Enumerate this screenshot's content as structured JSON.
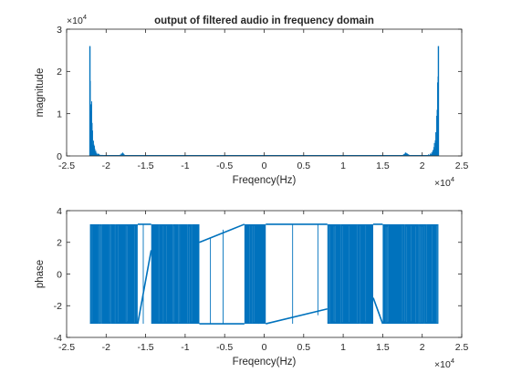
{
  "chart_data": [
    {
      "type": "line",
      "title": "output of filtered audio in frequency domain",
      "xlabel": "Freqency(Hz)",
      "ylabel": "magnitude",
      "x_exponent": {
        "base": "×10",
        "power": "4"
      },
      "y_exponent": {
        "base": "×10",
        "power": "4"
      },
      "xlim": [
        -25000,
        25000
      ],
      "ylim": [
        0,
        30000
      ],
      "x_tick_values": [
        -25000,
        -20000,
        -15000,
        -10000,
        -5000,
        0,
        5000,
        10000,
        15000,
        20000,
        25000
      ],
      "x_tick_labels": [
        "-2.5",
        "-2",
        "-1.5",
        "-1",
        "-0.5",
        "0",
        "0.5",
        "1",
        "1.5",
        "2",
        "2.5"
      ],
      "y_tick_values": [
        0,
        10000,
        20000,
        30000
      ],
      "y_tick_labels": [
        "0",
        "1",
        "2",
        "3"
      ],
      "grid": false,
      "color": "#0072BD",
      "data_x_range": [
        -22050,
        22050
      ],
      "spikes": [
        {
          "x": -22050,
          "y": 26000
        },
        {
          "x": 22050,
          "y": 26000
        }
      ],
      "envelope": [
        [
          -22050,
          26000
        ],
        [
          -21900,
          17000
        ],
        [
          -21750,
          9000
        ],
        [
          -21600,
          4000
        ],
        [
          -21400,
          1800
        ],
        [
          -21100,
          700
        ],
        [
          -20700,
          300
        ],
        [
          -20000,
          120
        ],
        [
          -18500,
          100
        ],
        [
          -17900,
          900
        ],
        [
          -17500,
          120
        ],
        [
          -15000,
          80
        ],
        [
          -10000,
          60
        ],
        [
          0,
          50
        ],
        [
          10000,
          60
        ],
        [
          15000,
          80
        ],
        [
          17500,
          120
        ],
        [
          17900,
          900
        ],
        [
          18500,
          100
        ],
        [
          20000,
          120
        ],
        [
          20700,
          300
        ],
        [
          21100,
          700
        ],
        [
          21400,
          1800
        ],
        [
          21600,
          4000
        ],
        [
          21750,
          9000
        ],
        [
          21900,
          17000
        ],
        [
          22050,
          26000
        ]
      ]
    },
    {
      "type": "line",
      "title": "",
      "xlabel": "Freqency(Hz)",
      "ylabel": "phase",
      "x_exponent": {
        "base": "×10",
        "power": "4"
      },
      "xlim": [
        -25000,
        25000
      ],
      "ylim": [
        -4,
        4
      ],
      "x_tick_values": [
        -25000,
        -20000,
        -15000,
        -10000,
        -5000,
        0,
        5000,
        10000,
        15000,
        20000,
        25000
      ],
      "x_tick_labels": [
        "-2.5",
        "-2",
        "-1.5",
        "-1",
        "-0.5",
        "0",
        "0.5",
        "1",
        "1.5",
        "2",
        "2.5"
      ],
      "y_tick_values": [
        -4,
        -2,
        0,
        2,
        4
      ],
      "y_tick_labels": [
        "-4",
        "-2",
        "0",
        "2",
        "4"
      ],
      "grid": false,
      "color": "#0072BD",
      "data_x_range": [
        -22050,
        22050
      ],
      "phase_limits": [
        -3.14,
        3.14
      ],
      "dense_bands": [
        [
          -22050,
          -16000
        ],
        [
          -14300,
          -8200
        ],
        [
          -2500,
          200
        ],
        [
          8000,
          13800
        ],
        [
          15000,
          22050
        ]
      ],
      "transitions": [
        {
          "x0": -16000,
          "x1": -14300,
          "top": [
            3.14,
            3.14
          ],
          "bottom": [
            -3.14,
            1.5
          ]
        },
        {
          "x0": -8200,
          "x1": -2500,
          "top": [
            2.0,
            3.14
          ],
          "bottom": [
            -3.14,
            -3.14
          ]
        },
        {
          "x0": 200,
          "x1": 8000,
          "top": [
            3.14,
            3.14
          ],
          "bottom": [
            -3.14,
            -2.2
          ]
        },
        {
          "x0": 13800,
          "x1": 15000,
          "top": [
            3.14,
            3.14
          ],
          "bottom": [
            -1.5,
            -3.14
          ]
        }
      ],
      "sparse_lines": [
        {
          "x": -15300,
          "y0": -3.14,
          "y1": 3.14
        },
        {
          "x": -6800,
          "y0": -3.14,
          "y1": 2.3
        },
        {
          "x": -5200,
          "y0": -3.14,
          "y1": 2.8
        },
        {
          "x": -700,
          "y0": -3.14,
          "y1": 3.1
        },
        {
          "x": 3600,
          "y0": -3.14,
          "y1": 3.14
        },
        {
          "x": 6800,
          "y0": -2.6,
          "y1": 3.14
        }
      ]
    }
  ]
}
